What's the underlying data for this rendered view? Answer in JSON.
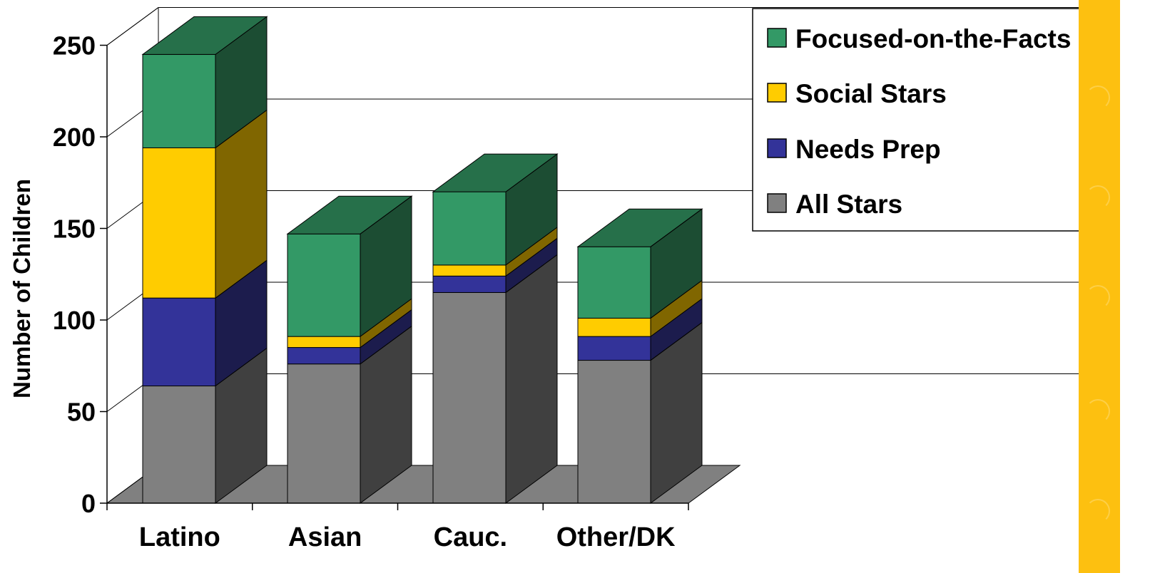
{
  "chart_data": {
    "type": "bar",
    "stacked": true,
    "three_d": true,
    "categories": [
      "Latino",
      "Asian",
      "Cauc.",
      "Other/DK"
    ],
    "series": [
      {
        "name": "All Stars",
        "values": [
          64,
          76,
          115,
          78
        ],
        "color": "#808080",
        "side_color": "#404040"
      },
      {
        "name": "Needs Prep",
        "values": [
          48,
          9,
          9,
          13
        ],
        "color": "#333399",
        "side_color": "#1C1C4D"
      },
      {
        "name": "Social Stars",
        "values": [
          82,
          6,
          6,
          10
        ],
        "color": "#FFCC00",
        "side_color": "#806600"
      },
      {
        "name": "Focused-on-the-Facts",
        "values": [
          51,
          56,
          40,
          39
        ],
        "color": "#339966",
        "side_color": "#1C4D33"
      }
    ],
    "title": "",
    "xlabel": "",
    "ylabel": "Number of Children",
    "ylim": [
      0,
      250
    ],
    "yticks": [
      0,
      50,
      100,
      150,
      200,
      250
    ],
    "grid": true,
    "legend": {
      "position": "top-right",
      "entries": [
        "Focused-on-the-Facts",
        "Social Stars",
        "Needs Prep",
        "All Stars"
      ]
    },
    "floor_color": "#808080",
    "top_color": "#26704A"
  },
  "decor": {
    "strip_color": "#FDC010"
  }
}
